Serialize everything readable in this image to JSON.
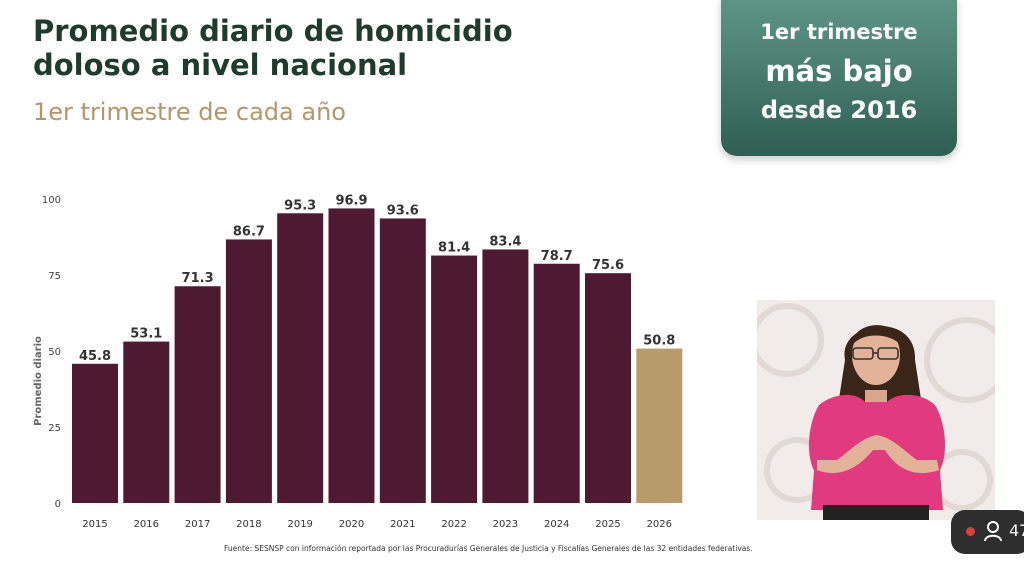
{
  "header": {
    "title_line1": "Promedio diario de homicidio",
    "title_line2": "doloso a nivel nacional",
    "subtitle": "1er trimestre de cada año"
  },
  "callout": {
    "line1": "1er trimestre",
    "line2": "más bajo",
    "line3": "desde 2016"
  },
  "source": "Fuente: SESNSP con información reportada por las Procuradurías Generales de Justicia y Fiscalías Generales de las 32 entidades federativas.",
  "live_badge": {
    "viewer_count": "47"
  },
  "colors": {
    "bar": "#4d1a32",
    "highlight": "#b89b6a",
    "title": "#1f3a2e",
    "subtitle": "#b1976a",
    "callout": "#44786b"
  },
  "chart_data": {
    "type": "bar",
    "categories": [
      "2015",
      "2016",
      "2017",
      "2018",
      "2019",
      "2020",
      "2021",
      "2022",
      "2023",
      "2024",
      "2025",
      "2026"
    ],
    "values": [
      45.8,
      53.1,
      71.3,
      86.7,
      95.3,
      96.9,
      93.6,
      81.4,
      83.4,
      78.7,
      75.6,
      50.8
    ],
    "value_labels": [
      "45.8",
      "53.1",
      "71.3",
      "86.7",
      "95.3",
      "96.9",
      "93.6",
      "81.4",
      "83.4",
      "78.7",
      "75.6",
      "50.8"
    ],
    "highlight_category": "2026",
    "ylabel": "Promedio diario",
    "ylim": [
      0,
      100
    ],
    "yticks": [
      0,
      25,
      50,
      75,
      100
    ],
    "grid": false
  }
}
